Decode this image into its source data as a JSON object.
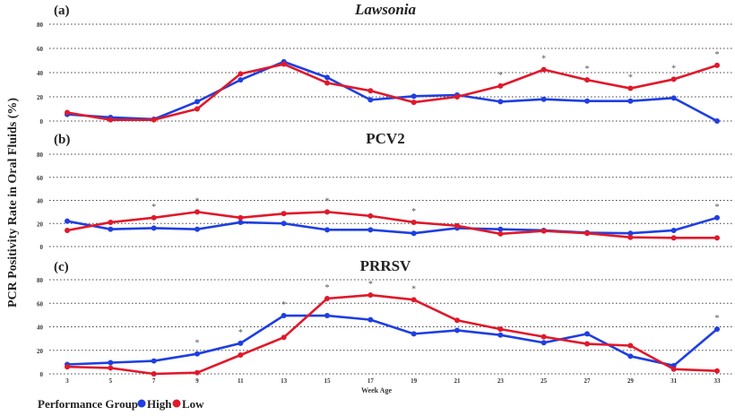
{
  "chart_data": [
    {
      "type": "line",
      "panel_label": "(a)",
      "title": "Lawsonia",
      "title_italic": true,
      "x": [
        3,
        5,
        7,
        9,
        11,
        13,
        15,
        17,
        19,
        21,
        23,
        25,
        27,
        29,
        31,
        33
      ],
      "series": [
        {
          "name": "High",
          "color": "#1f3fe0",
          "values": [
            5.5,
            3,
            1.5,
            16,
            34,
            49,
            36,
            17.5,
            20.5,
            21.5,
            16,
            18,
            16.5,
            16.5,
            19,
            0
          ]
        },
        {
          "name": "Low",
          "color": "#e0192b",
          "values": [
            7,
            1,
            1,
            10,
            39,
            47,
            31.5,
            25,
            15.5,
            20,
            29,
            42.5,
            34,
            27,
            34.5,
            46
          ]
        }
      ],
      "significant_weeks": [
        23,
        25,
        27,
        29,
        31,
        33
      ],
      "ylim": [
        0,
        80
      ],
      "yticks": [
        "0",
        "20",
        "40",
        "60",
        "80"
      ],
      "grid": true
    },
    {
      "type": "line",
      "panel_label": "(b)",
      "title": "PCV2",
      "x": [
        3,
        5,
        7,
        9,
        11,
        13,
        15,
        17,
        19,
        21,
        23,
        25,
        27,
        29,
        31,
        33
      ],
      "series": [
        {
          "name": "High",
          "color": "#1f3fe0",
          "values": [
            22,
            15,
            16,
            15,
            21,
            20,
            14.5,
            14.5,
            11.5,
            16,
            15,
            14,
            12,
            11.5,
            14,
            25
          ]
        },
        {
          "name": "Low",
          "color": "#e0192b",
          "values": [
            14,
            21,
            25,
            30,
            25,
            28.5,
            30,
            26.5,
            21,
            18,
            11,
            13.5,
            11.5,
            8,
            7.5,
            7.5
          ]
        }
      ],
      "significant_weeks": [
        7,
        9,
        15,
        19,
        33
      ],
      "ylim": [
        0,
        80
      ],
      "yticks": [
        "0",
        "20",
        "40",
        "60",
        "80"
      ],
      "grid": true
    },
    {
      "type": "line",
      "panel_label": "(c)",
      "title": "PRRSV",
      "x": [
        3,
        5,
        7,
        9,
        11,
        13,
        15,
        17,
        19,
        21,
        23,
        25,
        27,
        29,
        31,
        33
      ],
      "xticks": [
        "3",
        "5",
        "7",
        "9",
        "11",
        "13",
        "15",
        "17",
        "19",
        "21",
        "23",
        "25",
        "27",
        "29",
        "31",
        "33"
      ],
      "xlabel": "Week Age",
      "series": [
        {
          "name": "High",
          "color": "#1f3fe0",
          "values": [
            8,
            9.5,
            11,
            17,
            26,
            49.5,
            49.5,
            46,
            34,
            37,
            33,
            26.5,
            34,
            15,
            7,
            38
          ]
        },
        {
          "name": "Low",
          "color": "#e0192b",
          "values": [
            6,
            5,
            0,
            1,
            16,
            31,
            64,
            67,
            63,
            45.5,
            38,
            31.5,
            25.5,
            24,
            4,
            2.5
          ]
        }
      ],
      "significant_weeks": [
        9,
        11,
        13,
        15,
        17,
        19,
        33
      ],
      "ylim": [
        0,
        80
      ],
      "yticks": [
        "0",
        "20",
        "40",
        "60",
        "80"
      ],
      "grid": true
    }
  ],
  "ylabel": "PCR Positivity Rate in Oral Fluids (%)",
  "legend": {
    "title": "Performance Group",
    "placement": "bottom-left",
    "items": [
      {
        "label": "High",
        "color": "#1f3fe0"
      },
      {
        "label": "Low",
        "color": "#e0192b"
      }
    ]
  }
}
